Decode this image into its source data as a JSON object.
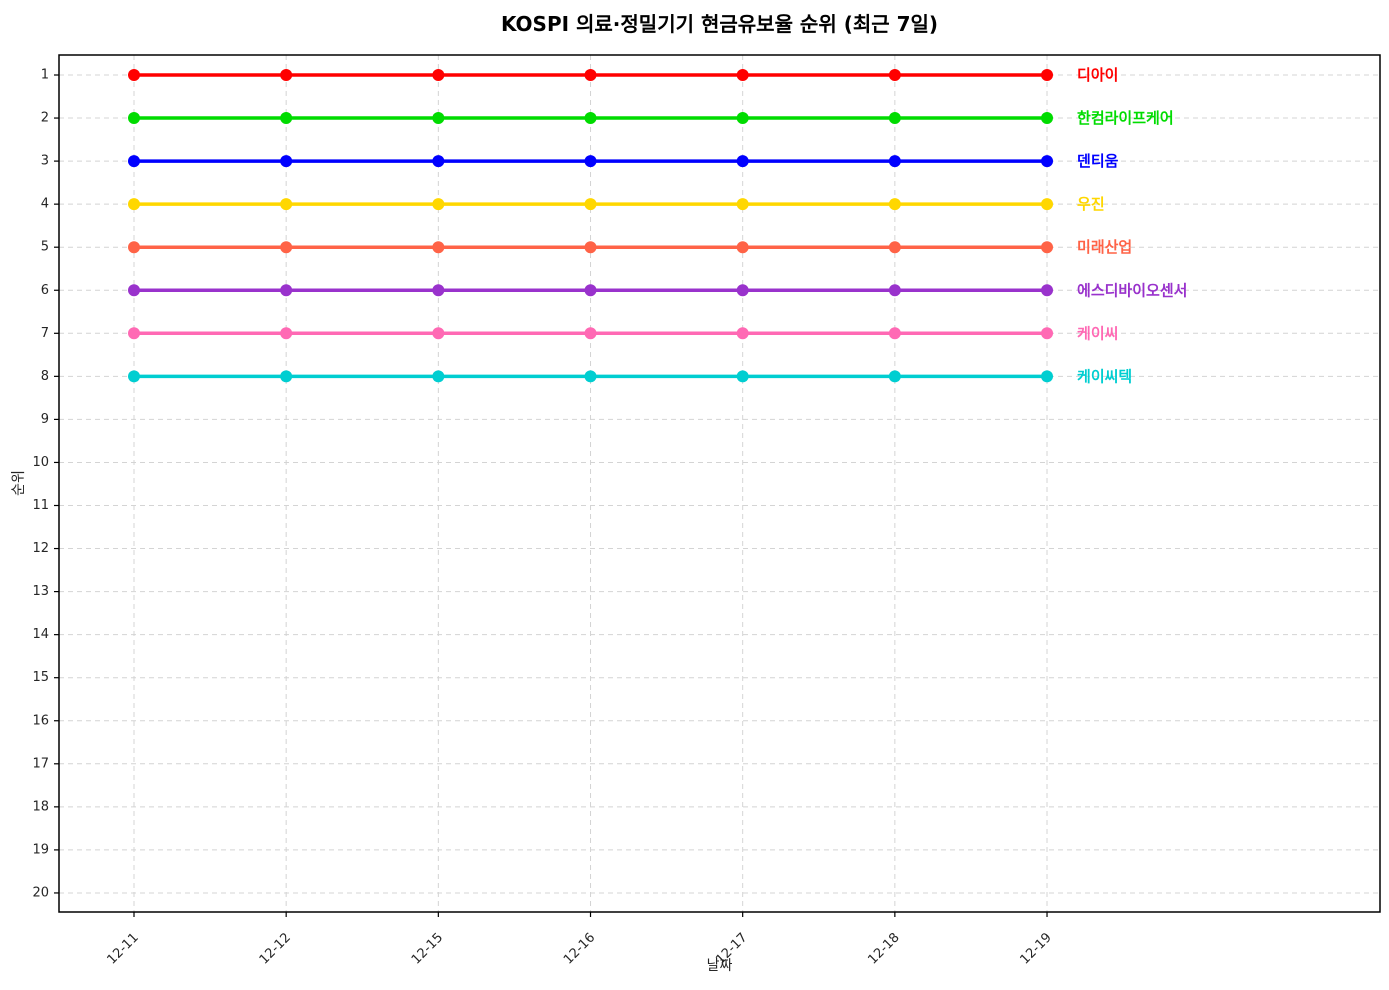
{
  "chart_data": {
    "type": "line",
    "title": "KOSPI 의료·정밀기기 현금유보율 순위 (최근 7일)",
    "xlabel": "날짜",
    "ylabel": "순위",
    "x": [
      "12-11",
      "12-12",
      "12-15",
      "12-16",
      "12-17",
      "12-18",
      "12-19"
    ],
    "yticks": [
      1,
      2,
      3,
      4,
      5,
      6,
      7,
      8,
      9,
      10,
      11,
      12,
      13,
      14,
      15,
      16,
      17,
      18,
      19,
      20
    ],
    "ylim": [
      20.5,
      0.5
    ],
    "y_axis_inverted": true,
    "grid": true,
    "grid_style": "dashed",
    "grid_color": "#d4d4d4",
    "spine_color": "#000000",
    "background_color": "#ffffff",
    "legend_position": "end-of-line-labels",
    "series": [
      {
        "name": "디아이",
        "color": "#FF0000",
        "values": [
          1,
          1,
          1,
          1,
          1,
          1,
          1
        ]
      },
      {
        "name": "한컴라이프케어",
        "color": "#00DC00",
        "values": [
          2,
          2,
          2,
          2,
          2,
          2,
          2
        ]
      },
      {
        "name": "덴티움",
        "color": "#0000FF",
        "values": [
          3,
          3,
          3,
          3,
          3,
          3,
          3
        ]
      },
      {
        "name": "우진",
        "color": "#FFD700",
        "values": [
          4,
          4,
          4,
          4,
          4,
          4,
          4
        ]
      },
      {
        "name": "미래산업",
        "color": "#FF6347",
        "values": [
          5,
          5,
          5,
          5,
          5,
          5,
          5
        ]
      },
      {
        "name": "에스디바이오센서",
        "color": "#9932CC",
        "values": [
          6,
          6,
          6,
          6,
          6,
          6,
          6
        ]
      },
      {
        "name": "케이씨",
        "color": "#FF69B4",
        "values": [
          7,
          7,
          7,
          7,
          7,
          7,
          7
        ]
      },
      {
        "name": "케이씨텍",
        "color": "#00CED1",
        "values": [
          8,
          8,
          8,
          8,
          8,
          8,
          8
        ]
      }
    ]
  }
}
